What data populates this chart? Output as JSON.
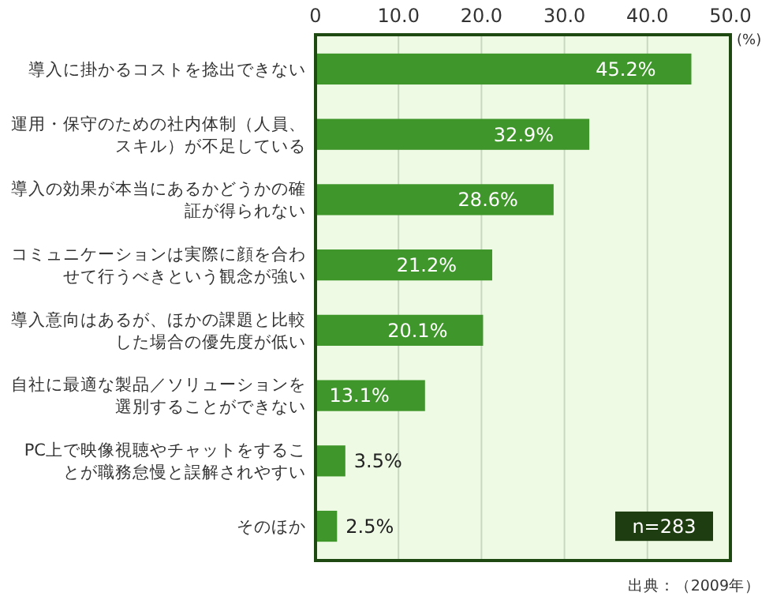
{
  "chart_data": {
    "type": "bar",
    "orientation": "horizontal",
    "categories": [
      "導入に掛かるコストを捻出できない",
      "運用・保守のための社内体制（人員、スキル）が不足している",
      "導入の効果が本当にあるかどうかの確証が得られない",
      "コミュニケーションは実際に顔を合わせて行うべきという観念が強い",
      "導入意向はあるが、ほかの課題と比較した場合の優先度が低い",
      "自社に最適な製品／ソリューションを選別することができない",
      "PC上で映像視聴やチャットをすることが職務怠慢と誤解されやすい",
      "そのほか"
    ],
    "values": [
      45.2,
      32.9,
      28.6,
      21.2,
      20.1,
      13.1,
      3.5,
      2.5
    ],
    "value_labels": [
      "45.2%",
      "32.9%",
      "28.6%",
      "21.2%",
      "20.1%",
      "13.1%",
      "3.5%",
      "2.5%"
    ],
    "color": "#3f962a",
    "xlim": [
      0,
      50
    ],
    "xticks": [
      0,
      {
        "value": 10,
        "label": "10.0"
      },
      {
        "value": 20,
        "label": "20.0"
      },
      {
        "value": 30,
        "label": "30.0"
      },
      {
        "value": 40,
        "label": "40.0"
      },
      {
        "value": 50,
        "label": "50.0"
      }
    ],
    "xlabel": "(%)",
    "grid": "x",
    "annotations": [
      "n=283",
      "出典：（2009年）"
    ]
  }
}
